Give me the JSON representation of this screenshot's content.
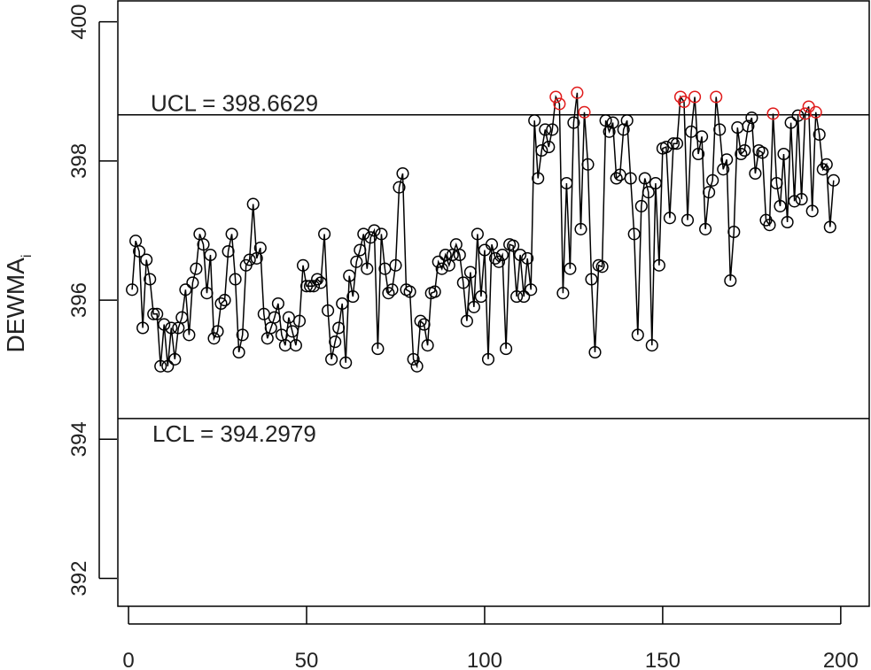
{
  "chart_data": {
    "type": "line",
    "ylabel": "DEWMA",
    "ylabel_subscript": "i",
    "xlim": [
      -3,
      208
    ],
    "ylim": [
      391.6,
      400.3
    ],
    "x_ticks": [
      0,
      50,
      100,
      150,
      200
    ],
    "y_ticks": [
      392,
      394,
      396,
      398,
      400
    ],
    "x_tick_labels": [
      "0",
      "50",
      "100",
      "150",
      "200"
    ],
    "y_tick_labels": [
      "392",
      "394",
      "396",
      "398",
      "400"
    ],
    "grid": false,
    "legend": "none",
    "control_limits": {
      "ucl": {
        "value": 398.6629,
        "label": "UCL = 398.6629"
      },
      "lcl": {
        "value": 394.2979,
        "label": "LCL = 394.2979"
      }
    },
    "colors": {
      "in_control": "#000000",
      "out_of_control": "#e01a1a",
      "line": "#000000"
    },
    "series": [
      {
        "values": [
          396.15,
          396.85,
          396.7,
          395.6,
          396.58,
          396.3,
          395.8,
          395.8,
          395.05,
          395.65,
          395.05,
          395.6,
          395.15,
          395.6,
          395.75,
          396.15,
          395.5,
          396.25,
          396.45,
          396.95,
          396.8,
          396.1,
          396.65,
          395.45,
          395.55,
          395.95,
          396.0,
          396.7,
          396.95,
          396.3,
          395.25,
          395.5,
          396.5,
          396.58,
          397.38,
          396.6,
          396.75,
          395.8,
          395.45,
          395.6,
          395.75,
          395.95,
          395.5,
          395.35,
          395.75,
          395.55,
          395.35,
          395.7,
          396.5,
          396.2,
          396.2,
          396.2,
          396.3,
          396.25,
          396.95,
          395.85,
          395.15,
          395.4,
          395.6,
          395.95,
          395.1,
          396.35,
          396.05,
          396.55,
          396.72,
          396.95,
          396.45,
          396.9,
          397.0,
          395.3,
          396.95,
          396.45,
          396.1,
          396.15,
          396.5,
          397.62,
          397.82,
          396.15,
          396.12,
          395.15,
          395.05,
          395.7,
          395.65,
          395.35,
          396.1,
          396.12,
          396.55,
          396.45,
          396.65,
          396.5,
          396.65,
          396.8,
          396.65,
          396.25,
          395.7,
          396.4,
          395.9,
          396.95,
          396.05,
          396.72,
          395.15,
          396.8,
          396.6,
          396.55,
          396.65,
          395.3,
          396.8,
          396.78,
          396.05,
          396.65,
          396.05,
          396.6,
          396.15,
          398.58,
          397.75,
          398.15,
          398.45,
          398.2,
          398.45,
          398.92,
          398.82,
          396.1,
          397.68,
          396.45,
          398.55,
          398.98,
          397.02,
          398.7,
          397.95,
          396.3,
          395.25,
          396.5,
          396.48,
          398.58,
          398.42,
          398.55,
          397.75,
          397.8,
          398.45,
          398.58,
          397.75,
          396.95,
          395.5,
          397.35,
          397.75,
          397.55,
          395.35,
          397.68,
          396.5,
          398.18,
          398.2,
          397.18,
          398.25,
          398.25,
          398.92,
          398.85,
          397.15,
          398.42,
          398.92,
          398.1,
          398.35,
          397.02,
          397.55,
          397.72,
          398.92,
          398.45,
          397.88,
          398.02,
          396.28,
          396.98,
          398.48,
          398.1,
          398.15,
          398.5,
          398.62,
          397.82,
          398.15,
          398.12,
          397.15,
          397.08,
          398.68,
          397.68,
          397.35,
          398.1,
          397.12,
          398.55,
          397.42,
          398.65,
          397.45,
          398.68,
          398.78,
          397.28,
          398.7,
          398.38,
          397.88,
          397.95,
          397.05,
          397.72
        ]
      }
    ]
  }
}
